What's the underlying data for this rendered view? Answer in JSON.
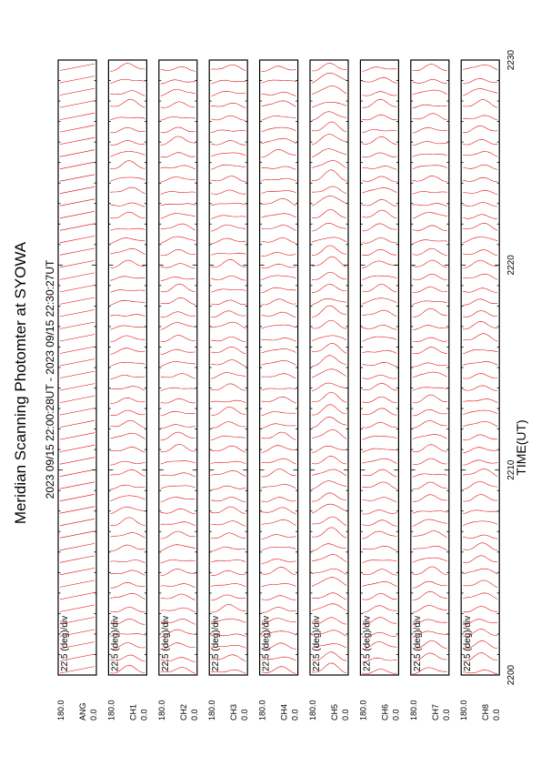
{
  "title": "Meridian Scanning Photomter at SYOWA",
  "time_range": "2023 09/15 22:00:28UT - 2023 09/15 22:30:27UT",
  "xlabel": "TIME(UT)",
  "x_ticks": [
    "2200",
    "2210",
    "2220",
    "2230"
  ],
  "scale_label": "22.5 (deg)/div",
  "y_top_label": "180.0",
  "y_bottom_label": "0.0",
  "colors": {
    "trace": "#e00000",
    "axis": "#000000",
    "background": "#ffffff"
  },
  "chart_data": {
    "type": "line",
    "x_range": [
      "2200",
      "2230"
    ],
    "y_range": [
      0.0,
      180.0
    ],
    "panels": [
      {
        "channel": "ANG",
        "scale": "22.5 (deg)/div",
        "ymin": "0.0",
        "ymax": "180.0"
      },
      {
        "channel": "CH1",
        "scale": "22.5 (deg)/div",
        "ymin": "0.0",
        "ymax": "180.0"
      },
      {
        "channel": "CH2",
        "scale": "22.5 (deg)/div",
        "ymin": "0.0",
        "ymax": "180.0"
      },
      {
        "channel": "CH3",
        "scale": "22.5 (deg)/div",
        "ymin": "0.0",
        "ymax": "180.0"
      },
      {
        "channel": "CH4",
        "scale": "22.5 (deg)/div",
        "ymin": "0.0",
        "ymax": "180.0"
      },
      {
        "channel": "CH5",
        "scale": "22.5 (deg)/div",
        "ymin": "0.0",
        "ymax": "180.0"
      },
      {
        "channel": "CH6",
        "scale": "22.5 (deg)/div",
        "ymin": "0.0",
        "ymax": "180.0"
      },
      {
        "channel": "CH7",
        "scale": "22.5 (deg)/div",
        "ymin": "0.0",
        "ymax": "180.0"
      },
      {
        "channel": "CH8",
        "scale": "22.5 (deg)/div",
        "ymin": "0.0",
        "ymax": "180.0"
      }
    ]
  }
}
